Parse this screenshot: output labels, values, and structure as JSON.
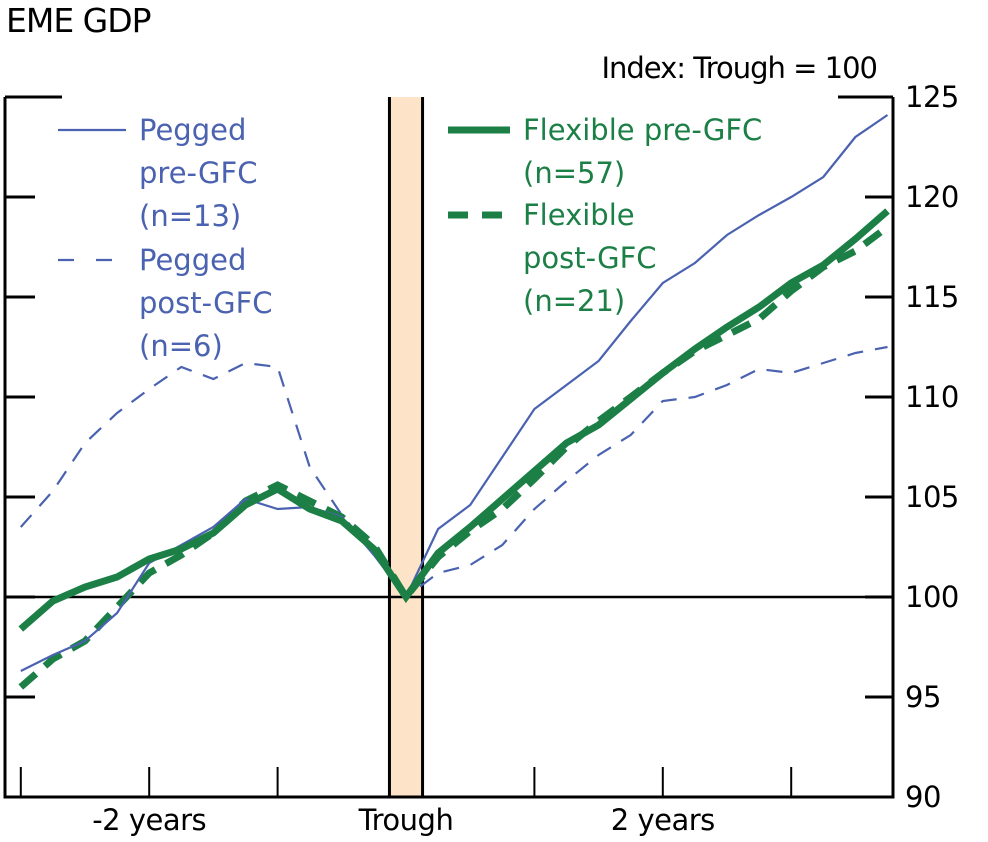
{
  "chart_data": {
    "type": "line",
    "title": "EME GDP",
    "unit_label": "Index: Trough = 100",
    "xlabel": "",
    "ylabel": "",
    "x_unit": "quarters relative to trough",
    "x": [
      -12,
      -11,
      -10,
      -9,
      -8,
      -7,
      -6,
      -5,
      -4,
      -3,
      -2,
      -1,
      0,
      1,
      2,
      3,
      4,
      5,
      6,
      7,
      8,
      9,
      10,
      11,
      12,
      13,
      14,
      15
    ],
    "xlim": [
      -12.5,
      15.2
    ],
    "x_ticks": [
      -12,
      -8,
      -4,
      0,
      4,
      8,
      12
    ],
    "x_tick_labels": [
      {
        "at": -8,
        "text": "-2 years"
      },
      {
        "at": 0,
        "text": "Trough"
      },
      {
        "at": 8,
        "text": "2 years"
      }
    ],
    "ylim": [
      90,
      125
    ],
    "y_ticks": [
      90,
      95,
      100,
      105,
      110,
      115,
      120,
      125
    ],
    "y_axis_side": "right",
    "reference_line": 100,
    "shaded_band": {
      "from": -0.5,
      "to": 0.5,
      "label": "Trough",
      "color": "#fde3c7"
    },
    "series": [
      {
        "name": "Pegged pre-GFC (n=13)",
        "legend_lines": [
          "Pegged",
          "pre-GFC",
          "(n=13)"
        ],
        "style": "thin-solid",
        "color": "#4a62b0",
        "values": [
          96.3,
          97.1,
          97.8,
          99.2,
          101.7,
          102.6,
          103.5,
          104.9,
          104.4,
          104.5,
          104.0,
          102.1,
          100.0,
          103.4,
          104.6,
          107.0,
          109.4,
          110.6,
          111.8,
          113.8,
          115.7,
          116.7,
          118.1,
          119.1,
          120.0,
          121.0,
          123.0,
          124.1
        ]
      },
      {
        "name": "Pegged post-GFC (n=6)",
        "legend_lines": [
          "Pegged",
          "post-GFC",
          "(n=6)"
        ],
        "style": "thin-dashed",
        "color": "#4a62b0",
        "values": [
          103.5,
          105.3,
          107.7,
          109.2,
          110.4,
          111.5,
          110.9,
          111.7,
          111.5,
          106.5,
          104.1,
          102.2,
          100.0,
          101.2,
          101.6,
          102.6,
          104.4,
          105.8,
          107.1,
          108.1,
          109.8,
          110.0,
          110.6,
          111.4,
          111.2,
          111.7,
          112.2,
          112.5
        ]
      },
      {
        "name": "Flexible pre-GFC (n=57)",
        "legend_lines": [
          "Flexible pre-GFC",
          "(n=57)"
        ],
        "style": "thick-solid",
        "color": "#1b7f46",
        "values": [
          98.4,
          99.8,
          100.5,
          101.0,
          101.9,
          102.4,
          103.2,
          104.6,
          105.4,
          104.4,
          103.8,
          102.4,
          100.0,
          102.2,
          103.5,
          104.9,
          106.3,
          107.7,
          108.6,
          109.9,
          111.2,
          112.4,
          113.5,
          114.5,
          115.7,
          116.6,
          117.9,
          119.3
        ]
      },
      {
        "name": "Flexible post-GFC (n=21)",
        "legend_lines": [
          "Flexible",
          "post-GFC",
          "(n=21)"
        ],
        "style": "thick-dashed",
        "color": "#1b7f46",
        "values": [
          95.5,
          96.9,
          97.8,
          99.5,
          101.2,
          102.1,
          103.2,
          104.8,
          105.6,
          104.8,
          104.0,
          102.6,
          100.0,
          102.0,
          103.3,
          104.4,
          105.9,
          107.5,
          108.8,
          110.0,
          111.2,
          112.3,
          113.1,
          113.9,
          115.3,
          116.5,
          117.3,
          118.5
        ]
      }
    ],
    "legend_placement": "top-left and top-center, inside plot",
    "grid": false
  }
}
